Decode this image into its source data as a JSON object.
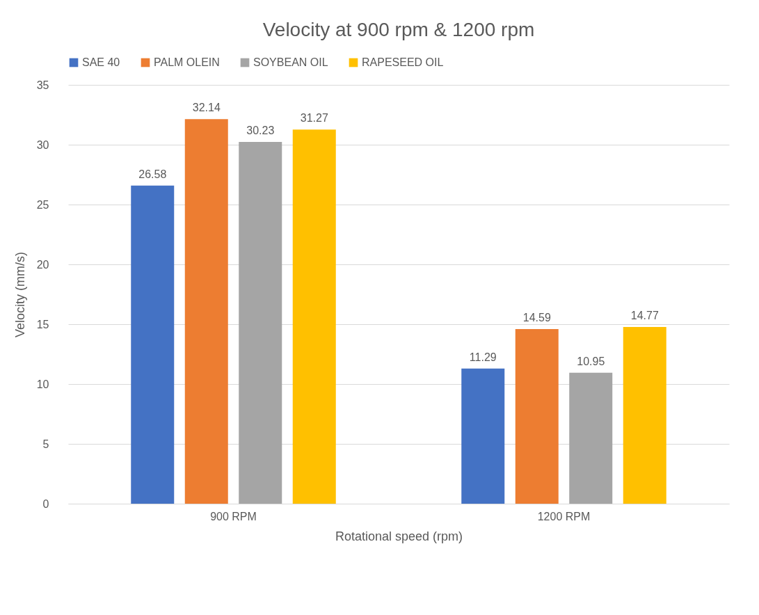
{
  "chart_data": {
    "type": "bar",
    "title": "Velocity at 900 rpm & 1200 rpm",
    "xlabel": "Rotational speed (rpm)",
    "ylabel": "Velocity (mm/s)",
    "categories": [
      "900 RPM",
      "1200 RPM"
    ],
    "series": [
      {
        "name": "SAE 40",
        "color": "#4472c4",
        "values": [
          26.58,
          11.29
        ]
      },
      {
        "name": "PALM OLEIN",
        "color": "#ed7d31",
        "values": [
          32.14,
          14.59
        ]
      },
      {
        "name": "SOYBEAN OIL",
        "color": "#a5a5a5",
        "values": [
          30.23,
          10.95
        ]
      },
      {
        "name": "RAPESEED OIL",
        "color": "#ffc000",
        "values": [
          31.27,
          14.77
        ]
      }
    ],
    "ylim": [
      0,
      35
    ],
    "yticks": [
      0,
      5,
      10,
      15,
      20,
      25,
      30,
      35
    ],
    "grid": "y",
    "legend": "top",
    "data_labels": true
  }
}
